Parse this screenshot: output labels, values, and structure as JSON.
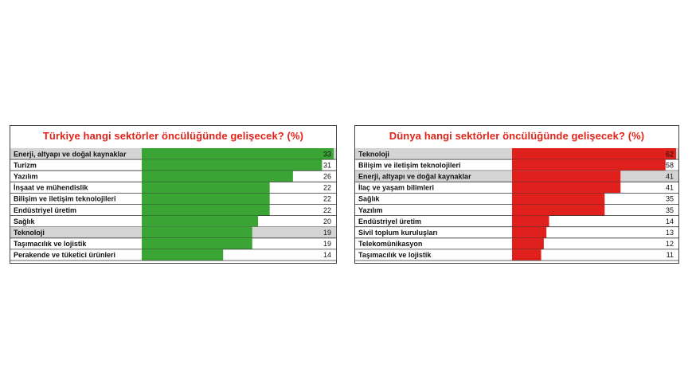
{
  "colors": {
    "left_bar": "#3aa534",
    "right_bar": "#e0201c",
    "title": "#e2231a",
    "highlight_row": "#d4d4d4"
  },
  "chart_data": [
    {
      "type": "bar",
      "orientation": "horizontal",
      "title": "Türkiye hangi sektörler öncülüğünde gelişecek? (%)",
      "categories": [
        "Enerji, altyapı ve doğal kaynaklar",
        "Turizm",
        "Yazılım",
        "İnşaat ve mühendislik",
        "Bilişim ve iletişim teknolojileri",
        "Endüstriyel üretim",
        "Sağlık",
        "Teknoloji",
        "Taşımacılık ve lojistik",
        "Perakende ve tüketici ürünleri"
      ],
      "values": [
        33,
        31,
        26,
        22,
        22,
        22,
        20,
        19,
        19,
        14
      ],
      "highlight_rows": [
        0,
        7
      ],
      "xlim": [
        0,
        33
      ]
    },
    {
      "type": "bar",
      "orientation": "horizontal",
      "title": "Dünya hangi sektörler öncülüğünde gelişecek? (%)",
      "categories": [
        "Teknoloji",
        "Bilişim ve iletişim teknolojileri",
        "Enerji, altyapı ve doğal kaynaklar",
        "İlaç ve yaşam bilimleri",
        "Sağlık",
        "Yazılım",
        "Endüstriyel üretim",
        "Sivil toplum kuruluşları",
        "Telekomünikasyon",
        "Taşımacılık ve lojistik"
      ],
      "values": [
        62,
        58,
        41,
        41,
        35,
        35,
        14,
        13,
        12,
        11
      ],
      "highlight_rows": [
        0,
        2
      ],
      "xlim": [
        0,
        62
      ]
    }
  ]
}
